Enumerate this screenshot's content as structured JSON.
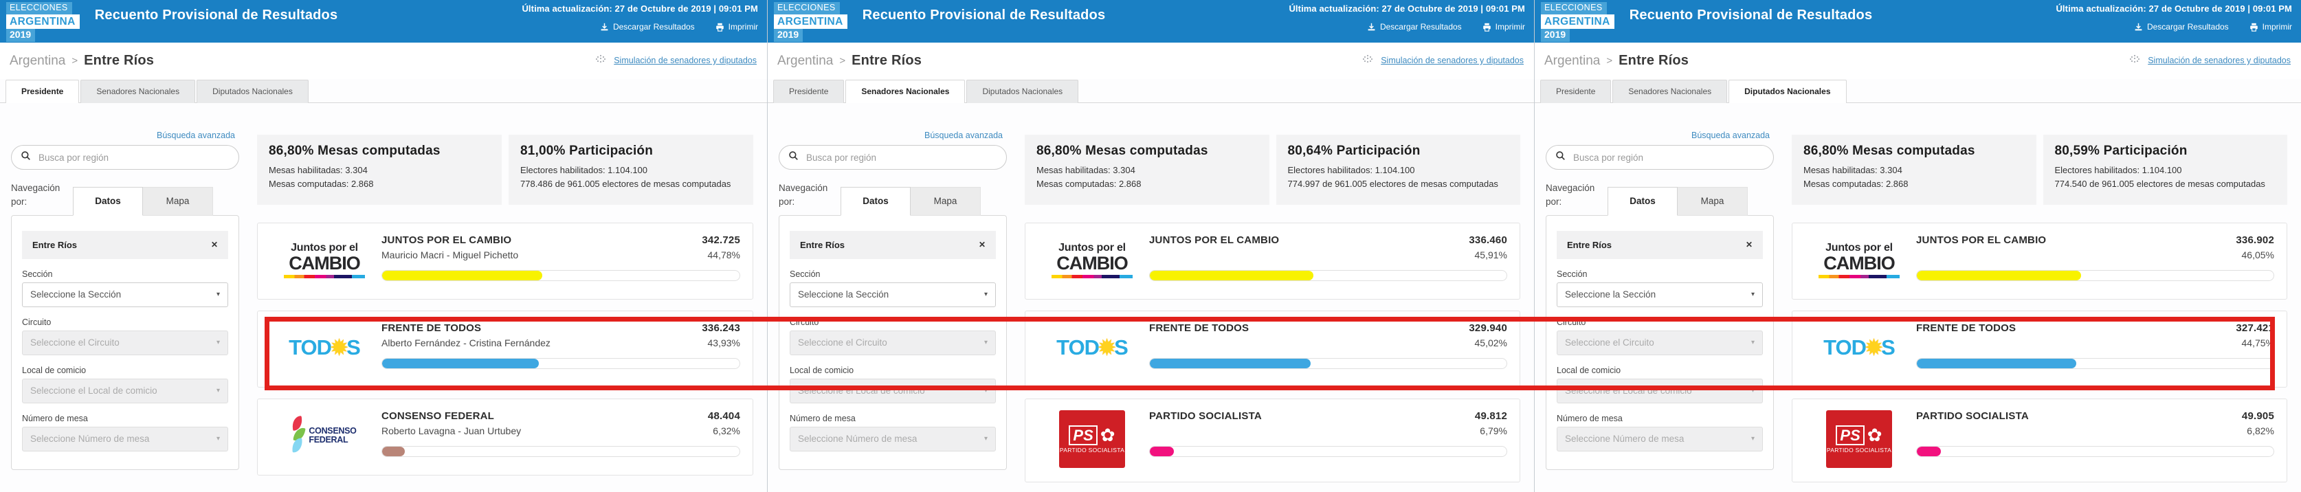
{
  "header": {
    "logo": {
      "line1": "ELECCIONES",
      "line2": "ARGENTINA",
      "line3": "2019"
    },
    "title": "Recuento Provisional de Resultados",
    "last_update": "Última actualización: 27 de Octubre de 2019 | 09:01 PM",
    "download_label": "Descargar Resultados",
    "print_label": "Imprimir"
  },
  "breadcrumb": {
    "country": "Argentina",
    "separator": ">",
    "region": "Entre Ríos"
  },
  "simulation_link_label": "Simulación de senadores y diputados",
  "tabs": [
    "Presidente",
    "Senadores Nacionales",
    "Diputados Nacionales"
  ],
  "sidebar": {
    "advanced_search": "Búsqueda avanzada",
    "search_placeholder": "Busca por región",
    "nav_label": "Navegación por:",
    "nav_tab_datos": "Datos",
    "nav_tab_mapa": "Mapa",
    "region_chip": "Entre Ríos",
    "filters": [
      {
        "label": "Sección",
        "value": "Seleccione la Sección",
        "disabled": false
      },
      {
        "label": "Circuito",
        "value": "Seleccione el Circuito",
        "disabled": true
      },
      {
        "label": "Local de comicio",
        "value": "Seleccione el Local de comicio",
        "disabled": true
      },
      {
        "label": "Número de mesa",
        "value": "Seleccione Número de mesa",
        "disabled": true
      }
    ]
  },
  "icons": {
    "chevron_glyph": "▾",
    "close_glyph": "✕"
  },
  "logos": {
    "cambio": {
      "line1": "Juntos por el",
      "line2": "CAMBIO"
    },
    "todos": {
      "pre": "TOD",
      "star": "✹",
      "post": "S"
    },
    "consenso": {
      "line1": "CONSENSO",
      "line2": "FEDERAL"
    },
    "ps": {
      "abbr": "PS",
      "rose": "✿",
      "name": "PARTIDO SOCIALISTA"
    }
  },
  "annotation_color": "#e2211c",
  "panels": [
    {
      "active_tab": "Presidente",
      "stats": {
        "mesas_title": "86,80% Mesas computadas",
        "mesas_line1": "Mesas habilitadas: 3.304",
        "mesas_line2": "Mesas computadas: 2.868",
        "part_title": "81,00% Participación",
        "part_line1": "Electores habilitados: 1.104.100",
        "part_line2": "778.486 de 961.005 electores de mesas computadas"
      },
      "results": [
        {
          "party": "JUNTOS POR EL CAMBIO",
          "candidates": "Mauricio Macri - Miguel Pichetto",
          "votes": "342.725",
          "pct": "44,78%",
          "pct_value": 44.78,
          "color": "#f8f200"
        },
        {
          "party": "FRENTE DE TODOS",
          "candidates": "Alberto Fernández - Cristina Fernández",
          "votes": "336.243",
          "pct": "43,93%",
          "pct_value": 43.93,
          "color": "#3ea7e1"
        },
        {
          "party": "CONSENSO FEDERAL",
          "candidates": "Roberto Lavagna - Juan Urtubey",
          "votes": "48.404",
          "pct": "6,32%",
          "pct_value": 6.32,
          "color": "#b98578"
        }
      ]
    },
    {
      "active_tab": "Senadores Nacionales",
      "stats": {
        "mesas_title": "86,80% Mesas computadas",
        "mesas_line1": "Mesas habilitadas: 3.304",
        "mesas_line2": "Mesas computadas: 2.868",
        "part_title": "80,64% Participación",
        "part_line1": "Electores habilitados: 1.104.100",
        "part_line2": "774.997 de 961.005 electores de mesas computadas"
      },
      "results": [
        {
          "party": "JUNTOS POR EL CAMBIO",
          "candidates": "",
          "votes": "336.460",
          "pct": "45,91%",
          "pct_value": 45.91,
          "color": "#f8f200"
        },
        {
          "party": "FRENTE DE TODOS",
          "candidates": "",
          "votes": "329.940",
          "pct": "45,02%",
          "pct_value": 45.02,
          "color": "#3ea7e1"
        },
        {
          "party": "PARTIDO SOCIALISTA",
          "candidates": "",
          "votes": "49.812",
          "pct": "6,79%",
          "pct_value": 6.79,
          "color": "#f2117e"
        }
      ]
    },
    {
      "active_tab": "Diputados Nacionales",
      "stats": {
        "mesas_title": "86,80% Mesas computadas",
        "mesas_line1": "Mesas habilitadas: 3.304",
        "mesas_line2": "Mesas computadas: 2.868",
        "part_title": "80,59% Participación",
        "part_line1": "Electores habilitados: 1.104.100",
        "part_line2": "774.540 de 961.005 electores de mesas computadas"
      },
      "results": [
        {
          "party": "JUNTOS POR EL CAMBIO",
          "candidates": "",
          "votes": "336.902",
          "pct": "46,05%",
          "pct_value": 46.05,
          "color": "#f8f200"
        },
        {
          "party": "FRENTE DE TODOS",
          "candidates": "",
          "votes": "327.421",
          "pct": "44,75%",
          "pct_value": 44.75,
          "color": "#3ea7e1"
        },
        {
          "party": "PARTIDO SOCIALISTA",
          "candidates": "",
          "votes": "49.905",
          "pct": "6,82%",
          "pct_value": 6.82,
          "color": "#f2117e"
        }
      ]
    }
  ]
}
